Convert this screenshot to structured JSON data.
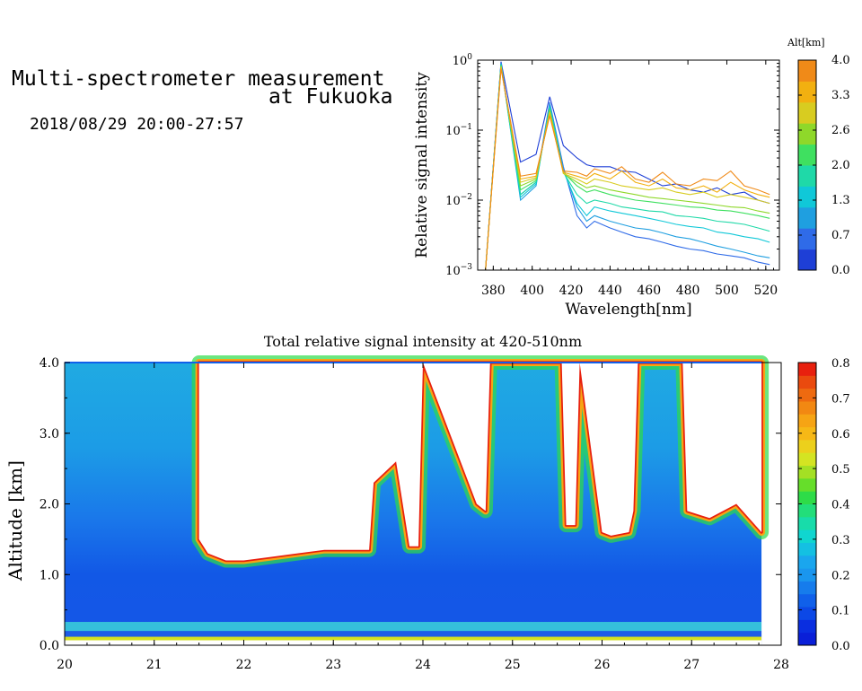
{
  "header": {
    "title_line1": "Multi-spectrometer measurement",
    "title_line2": "at Fukuoka",
    "time_range": "2018/08/29 20:00-27:57"
  },
  "chart_data": [
    {
      "type": "line",
      "title": "",
      "xlabel": "Wavelength[nm]",
      "ylabel": "Relative signal intensity",
      "y_scale": "log",
      "xlim": [
        372,
        527
      ],
      "ylim": [
        0.001,
        1
      ],
      "x_ticks": [
        "380",
        "400",
        "420",
        "440",
        "460",
        "480",
        "500",
        "520"
      ],
      "y_ticks": [
        "10^-3",
        "10^-2",
        "10^-1",
        "10^0"
      ],
      "grid": false,
      "x": [
        376,
        384,
        394,
        402,
        409,
        416,
        423,
        428,
        432,
        440,
        446,
        453,
        460,
        467,
        474,
        481,
        488,
        495,
        502,
        509,
        516,
        522
      ],
      "series": [
        {
          "color": "#1e3fd6",
          "values": [
            0.001,
            0.95,
            0.035,
            0.045,
            0.3,
            0.06,
            0.04,
            0.032,
            0.03,
            0.03,
            0.026,
            0.025,
            0.02,
            0.016,
            0.017,
            0.014,
            0.013,
            0.015,
            0.012,
            0.013,
            0.01,
            0.009
          ]
        },
        {
          "color": "#2f6be8",
          "values": [
            0.001,
            0.92,
            0.012,
            0.018,
            0.25,
            0.03,
            0.006,
            0.004,
            0.005,
            0.004,
            0.0035,
            0.003,
            0.0028,
            0.0025,
            0.0022,
            0.002,
            0.0019,
            0.0017,
            0.0016,
            0.0015,
            0.0013,
            0.0012
          ]
        },
        {
          "color": "#1f9fe0",
          "values": [
            0.001,
            0.9,
            0.01,
            0.016,
            0.24,
            0.028,
            0.008,
            0.005,
            0.006,
            0.005,
            0.0045,
            0.004,
            0.0038,
            0.0034,
            0.003,
            0.0028,
            0.0025,
            0.0022,
            0.002,
            0.0018,
            0.0016,
            0.0015
          ]
        },
        {
          "color": "#10c8d8",
          "values": [
            0.001,
            0.88,
            0.011,
            0.017,
            0.22,
            0.026,
            0.009,
            0.006,
            0.008,
            0.007,
            0.0065,
            0.006,
            0.0055,
            0.005,
            0.0045,
            0.0042,
            0.004,
            0.0035,
            0.0033,
            0.003,
            0.0028,
            0.0025
          ]
        },
        {
          "color": "#1fd9a8",
          "values": [
            0.001,
            0.86,
            0.012,
            0.018,
            0.21,
            0.025,
            0.012,
            0.009,
            0.01,
            0.009,
            0.008,
            0.0075,
            0.007,
            0.0068,
            0.006,
            0.0058,
            0.0055,
            0.005,
            0.0048,
            0.0045,
            0.004,
            0.0036
          ]
        },
        {
          "color": "#3fe060",
          "values": [
            0.001,
            0.84,
            0.014,
            0.019,
            0.2,
            0.025,
            0.016,
            0.013,
            0.014,
            0.012,
            0.011,
            0.01,
            0.0095,
            0.009,
            0.0085,
            0.008,
            0.0078,
            0.0072,
            0.007,
            0.0065,
            0.006,
            0.0055
          ]
        },
        {
          "color": "#8fd82a",
          "values": [
            0.001,
            0.82,
            0.016,
            0.02,
            0.19,
            0.024,
            0.018,
            0.015,
            0.016,
            0.014,
            0.013,
            0.012,
            0.011,
            0.0105,
            0.01,
            0.0095,
            0.009,
            0.0085,
            0.008,
            0.0078,
            0.007,
            0.0065
          ]
        },
        {
          "color": "#d8cc20",
          "values": [
            0.001,
            0.8,
            0.018,
            0.021,
            0.18,
            0.024,
            0.02,
            0.017,
            0.02,
            0.018,
            0.016,
            0.015,
            0.014,
            0.015,
            0.013,
            0.012,
            0.013,
            0.011,
            0.012,
            0.011,
            0.01,
            0.009
          ]
        },
        {
          "color": "#f2b010",
          "values": [
            0.001,
            0.78,
            0.02,
            0.022,
            0.17,
            0.025,
            0.022,
            0.02,
            0.024,
            0.02,
            0.026,
            0.018,
            0.016,
            0.02,
            0.015,
            0.014,
            0.016,
            0.013,
            0.018,
            0.014,
            0.012,
            0.011
          ]
        },
        {
          "color": "#f08a18",
          "values": [
            0.001,
            0.75,
            0.022,
            0.024,
            0.16,
            0.026,
            0.025,
            0.022,
            0.028,
            0.024,
            0.03,
            0.02,
            0.018,
            0.025,
            0.017,
            0.016,
            0.02,
            0.019,
            0.026,
            0.016,
            0.014,
            0.012
          ]
        }
      ],
      "colorbar": {
        "label": "Alt[km]",
        "ticks": [
          "0.0",
          "0.7",
          "1.3",
          "2.0",
          "2.6",
          "3.3",
          "4.0"
        ],
        "colors": [
          "#1e3fd6",
          "#2f6be8",
          "#1f9fe0",
          "#10c8d8",
          "#1fd9a8",
          "#3fe060",
          "#8fd82a",
          "#d8cc20",
          "#f2b010",
          "#f08a18"
        ]
      }
    },
    {
      "type": "heatmap",
      "title": "Total relative signal intensity at 420-510nm",
      "xlabel": "",
      "ylabel": "Altitude [km]",
      "xlim": [
        20,
        28
      ],
      "ylim": [
        0,
        4
      ],
      "x_ticks": [
        "20",
        "21",
        "22",
        "23",
        "24",
        "25",
        "26",
        "27",
        "28"
      ],
      "y_ticks": [
        "0.0",
        "1.0",
        "2.0",
        "3.0",
        "4.0"
      ],
      "data_x_end": 27.78,
      "cloud_base_km": [
        [
          21.5,
          1.5
        ],
        [
          21.6,
          1.3
        ],
        [
          21.8,
          1.2
        ],
        [
          22.0,
          1.2
        ],
        [
          22.3,
          1.25
        ],
        [
          22.6,
          1.3
        ],
        [
          22.9,
          1.35
        ],
        [
          23.2,
          1.35
        ],
        [
          23.4,
          1.35
        ],
        [
          23.45,
          2.3
        ],
        [
          23.7,
          2.6
        ],
        [
          23.85,
          1.4
        ],
        [
          23.95,
          1.4
        ],
        [
          24.0,
          4.0
        ],
        [
          24.6,
          2.0
        ],
        [
          24.7,
          1.9
        ],
        [
          24.75,
          4.0
        ],
        [
          25.55,
          4.0
        ],
        [
          25.6,
          1.7
        ],
        [
          25.7,
          1.7
        ],
        [
          25.75,
          4.0
        ],
        [
          26.0,
          1.6
        ],
        [
          26.1,
          1.55
        ],
        [
          26.3,
          1.6
        ],
        [
          26.35,
          1.9
        ],
        [
          26.4,
          4.0
        ],
        [
          26.9,
          4.0
        ],
        [
          26.95,
          1.9
        ],
        [
          27.2,
          1.8
        ],
        [
          27.5,
          2.0
        ],
        [
          27.78,
          1.6
        ]
      ],
      "colorbar": {
        "ticks": [
          "0.0",
          "0.1",
          "0.2",
          "0.3",
          "0.4",
          "0.5",
          "0.6",
          "0.7",
          "0.8"
        ],
        "range": [
          0,
          0.8
        ]
      }
    }
  ]
}
